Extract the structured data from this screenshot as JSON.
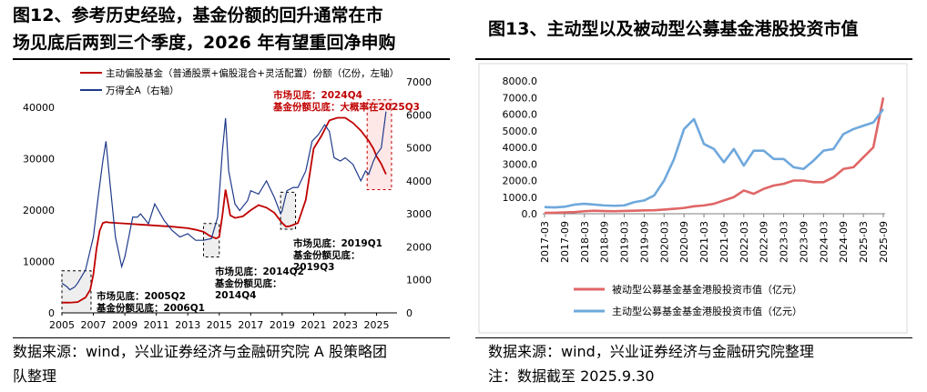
{
  "left": {
    "title_line1": "图12、参考历史经验，基金份额的回升通常在市",
    "title_line2": "场见底后两到三个季度，2026 年有望重回净申购",
    "source_line1": "数据来源：wind，兴业证券经济与金融研究院 A 股策略团",
    "source_line2": "队整理"
  },
  "right": {
    "title": "图13、主动型以及被动型公募基金港股投资市值",
    "source": "数据来源：wind，兴业证券经济与金融研究院整理",
    "note": "注：数据截至 2025.9.30"
  },
  "colors": {
    "red": "#c00000",
    "navy": "#1f3a8a",
    "pink": "#e06666",
    "blue": "#6fa8dc",
    "annot_red": "#c00000",
    "shade": "#eeeeee"
  },
  "chart_data": [
    {
      "type": "line",
      "title": "",
      "x_ticks": [
        "2005",
        "2007",
        "2009",
        "2011",
        "2013",
        "2015",
        "2017",
        "2019",
        "2021",
        "2023",
        "2025"
      ],
      "xlim": [
        2005,
        2026.3
      ],
      "ylim_left": [
        0,
        45000
      ],
      "yticks_left": [
        "0",
        "10000",
        "20000",
        "30000",
        "40000"
      ],
      "ylim_right": [
        0,
        7000
      ],
      "yticks_right": [
        "0",
        "1000",
        "2000",
        "3000",
        "4000",
        "5000",
        "6000",
        "7000"
      ],
      "legend_position": "top-left",
      "series": [
        {
          "name": "主动偏股基金（普通股票+偏股混合+灵活配置）份额（亿份，左轴）",
          "axis": "left",
          "x": [
            2005.0,
            2005.5,
            2006.0,
            2006.5,
            2006.8,
            2007.0,
            2007.2,
            2007.4,
            2007.6,
            2007.8,
            2008.0,
            2009.0,
            2010.0,
            2011.0,
            2012.0,
            2013.0,
            2013.5,
            2014.0,
            2014.4,
            2014.8,
            2015.0,
            2015.2,
            2015.4,
            2015.7,
            2016.0,
            2016.5,
            2017.0,
            2017.5,
            2018.0,
            2018.5,
            2019.0,
            2019.25,
            2019.5,
            2020.0,
            2020.5,
            2021.0,
            2021.5,
            2022.0,
            2022.5,
            2023.0,
            2023.5,
            2024.0,
            2024.5,
            2024.8,
            2025.0,
            2025.3,
            2025.6
          ],
          "y": [
            2000,
            2000,
            2100,
            3000,
            4500,
            7500,
            12500,
            16000,
            17500,
            17700,
            17600,
            17400,
            17200,
            17000,
            16800,
            16500,
            16200,
            15800,
            15000,
            14500,
            14800,
            19000,
            24000,
            19000,
            18500,
            18800,
            20000,
            21000,
            20500,
            19500,
            17500,
            16800,
            16900,
            17500,
            22000,
            32000,
            34500,
            37500,
            38000,
            38000,
            37000,
            35500,
            33500,
            32000,
            30500,
            29000,
            27000
          ]
        },
        {
          "name": "万得全A（右轴）",
          "axis": "right",
          "x": [
            2005.0,
            2005.3,
            2005.5,
            2005.8,
            2006.0,
            2006.5,
            2007.0,
            2007.3,
            2007.6,
            2007.8,
            2008.0,
            2008.4,
            2008.8,
            2009.0,
            2009.5,
            2009.8,
            2010.0,
            2010.5,
            2010.9,
            2011.5,
            2012.0,
            2012.5,
            2013.0,
            2013.5,
            2014.0,
            2014.5,
            2014.9,
            2015.2,
            2015.4,
            2015.6,
            2015.8,
            2016.0,
            2016.3,
            2016.8,
            2017.0,
            2017.5,
            2018.0,
            2018.5,
            2018.9,
            2019.0,
            2019.3,
            2019.7,
            2020.0,
            2020.5,
            2020.9,
            2021.3,
            2021.7,
            2022.0,
            2022.3,
            2022.7,
            2023.0,
            2023.5,
            2024.0,
            2024.3,
            2024.5,
            2024.8,
            2025.0,
            2025.3,
            2025.6
          ],
          "y": [
            900,
            800,
            700,
            780,
            900,
            1300,
            2300,
            3500,
            4600,
            5200,
            4200,
            2300,
            1400,
            1700,
            2900,
            2900,
            3000,
            2700,
            3300,
            2800,
            2500,
            2300,
            2400,
            2200,
            2200,
            2250,
            2900,
            4900,
            5900,
            4300,
            3800,
            3300,
            3100,
            3400,
            3700,
            3600,
            4000,
            3500,
            3000,
            3100,
            3700,
            3800,
            3800,
            4300,
            5200,
            5400,
            5700,
            5500,
            4700,
            4600,
            4700,
            4500,
            4000,
            4300,
            4200,
            4600,
            4800,
            5000,
            6100
          ]
        }
      ],
      "annotations": [
        {
          "lines": [
            "市场见底：2005Q2",
            "基金份额见底：2006Q1"
          ],
          "color": "#000"
        },
        {
          "lines": [
            "市场见底：2014Q2",
            "基金份额见底：",
            "2014Q4"
          ],
          "color": "#000"
        },
        {
          "lines": [
            "市场见底：2019Q1",
            "基金份额见底：",
            "2019Q3"
          ],
          "color": "#000"
        },
        {
          "lines": [
            "市场见底：2024Q4",
            "基金份额见底：大概率在2025Q3"
          ],
          "color": "#c00000"
        }
      ]
    },
    {
      "type": "line",
      "title": "",
      "categories": [
        "2017-03",
        "2017-09",
        "2018-03",
        "2018-09",
        "2019-03",
        "2019-09",
        "2020-03",
        "2020-09",
        "2021-03",
        "2021-09",
        "2022-03",
        "2022-09",
        "2023-03",
        "2023-09",
        "2024-03",
        "2024-09",
        "2025-03",
        "2025-09"
      ],
      "ylim": [
        0,
        8000
      ],
      "yticks": [
        "0.0",
        "1000.0",
        "2000.0",
        "3000.0",
        "4000.0",
        "5000.0",
        "6000.0",
        "7000.0",
        "8000.0"
      ],
      "legend_position": "bottom",
      "series": [
        {
          "name": "被动型公募基金基金港股投资市值（亿元）",
          "x": [
            0,
            0.5,
            1,
            1.5,
            2,
            2.5,
            3,
            3.5,
            4,
            4.5,
            5,
            5.5,
            6,
            6.5,
            7,
            7.5,
            8,
            8.5,
            9,
            9.5,
            10,
            10.5,
            11,
            11.5,
            12,
            12.5,
            13,
            13.5,
            14,
            14.5,
            15,
            15.5,
            16,
            16.5,
            17
          ],
          "y": [
            50,
            60,
            80,
            100,
            150,
            180,
            160,
            150,
            170,
            180,
            200,
            210,
            250,
            300,
            350,
            450,
            500,
            600,
            800,
            1000,
            1400,
            1200,
            1500,
            1700,
            1800,
            2000,
            2000,
            1900,
            1900,
            2200,
            2700,
            2800,
            3400,
            4000,
            7000
          ]
        },
        {
          "name": "主动型公募基金基金港股投资市值（亿元）",
          "x": [
            0,
            0.5,
            1,
            1.5,
            2,
            2.5,
            3,
            3.5,
            4,
            4.5,
            5,
            5.5,
            6,
            6.5,
            7,
            7.5,
            8,
            8.5,
            9,
            9.5,
            10,
            10.5,
            11,
            11.5,
            12,
            12.5,
            13,
            13.5,
            14,
            14.5,
            15,
            15.5,
            16,
            16.5,
            17
          ],
          "y": [
            400,
            380,
            420,
            550,
            600,
            550,
            500,
            480,
            500,
            700,
            800,
            1100,
            2000,
            3300,
            5100,
            5700,
            4200,
            3900,
            3100,
            3900,
            2900,
            3800,
            3800,
            3300,
            3300,
            2800,
            2700,
            3200,
            3800,
            3900,
            4800,
            5100,
            5300,
            5500,
            6300
          ]
        }
      ]
    }
  ]
}
